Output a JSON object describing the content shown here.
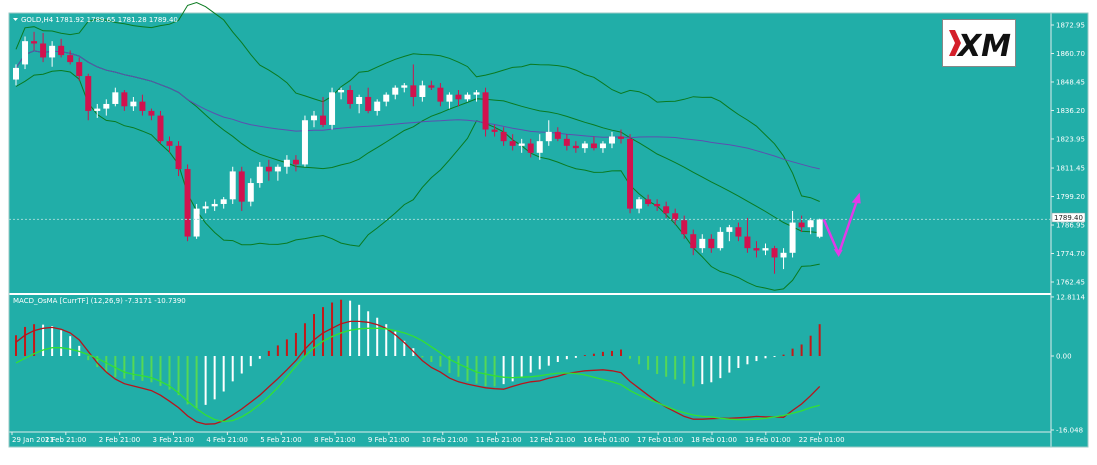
{
  "main_panel": {
    "header": "GOLD,H4  1781.92 1789.65 1781.28 1789.40",
    "price_ticks": [
      "1872.95",
      "1860.70",
      "1848.45",
      "1836.20",
      "1823.95",
      "1811.45",
      "1799.20",
      "1786.95",
      "1774.70",
      "1762.45"
    ],
    "current_price": "1789.40"
  },
  "macd_panel": {
    "header": "MACD_OsMA [CurrTF] (12,26,9) -7.3171 -10.7390",
    "ticks": [
      "12.8114",
      "0.00",
      "-16.048"
    ]
  },
  "x_axis": {
    "labels": [
      "29 Jan 2021",
      "1 Feb 21:00",
      "2 Feb 21:00",
      "3 Feb 21:00",
      "4 Feb 21:00",
      "5 Feb 21:00",
      "8 Feb 21:00",
      "9 Feb 21:00",
      "10 Feb 21:00",
      "11 Feb 21:00",
      "12 Feb 21:00",
      "16 Feb 01:00",
      "17 Feb 01:00",
      "18 Feb 01:00",
      "19 Feb 01:00",
      "22 Feb 01:00"
    ]
  },
  "logo": {
    "text": "XM"
  },
  "colors": {
    "background": "#21aea8",
    "bull_candle": "#ffffff",
    "bear_candle": "#d1124e",
    "bollinger": "#0a7a20",
    "ma_line": "#5c4fb0",
    "macd_signal": "#b8141c",
    "macd_main": "#33e033",
    "arrow": "#e23ae8",
    "hist_pos_rising": "#c41818",
    "hist_pos_falling": "#ffffff",
    "hist_neg_rising": "#ffffff",
    "hist_neg_falling": "#55d855"
  },
  "chart_data": {
    "type": "candlestick",
    "symbol": "GOLD",
    "timeframe": "H4",
    "ylim": [
      1762.45,
      1872.95
    ],
    "candles": [
      [
        1849.5,
        1856.0,
        1847.0,
        1854.5
      ],
      [
        1856.0,
        1868.0,
        1854.0,
        1866.0
      ],
      [
        1866.0,
        1870.0,
        1862.0,
        1865.0
      ],
      [
        1865.0,
        1869.5,
        1857.0,
        1859.0
      ],
      [
        1859.0,
        1866.0,
        1855.0,
        1864.0
      ],
      [
        1864.0,
        1867.0,
        1859.0,
        1860.0
      ],
      [
        1860.0,
        1862.0,
        1856.0,
        1857.0
      ],
      [
        1857.0,
        1859.0,
        1849.0,
        1851.0
      ],
      [
        1851.0,
        1852.0,
        1832.0,
        1836.0
      ],
      [
        1836.0,
        1839.0,
        1833.0,
        1837.0
      ],
      [
        1837.0,
        1841.0,
        1834.0,
        1839.0
      ],
      [
        1839.0,
        1846.0,
        1838.0,
        1844.0
      ],
      [
        1844.0,
        1845.0,
        1836.0,
        1838.0
      ],
      [
        1838.0,
        1842.0,
        1836.0,
        1840.0
      ],
      [
        1840.0,
        1843.0,
        1834.0,
        1836.0
      ],
      [
        1836.0,
        1837.0,
        1832.0,
        1834.0
      ],
      [
        1834.0,
        1836.0,
        1822.0,
        1823.0
      ],
      [
        1823.0,
        1825.0,
        1818.0,
        1821.0
      ],
      [
        1821.0,
        1823.0,
        1808.0,
        1811.0
      ],
      [
        1811.0,
        1813.0,
        1780.0,
        1782.0
      ],
      [
        1782.0,
        1796.0,
        1781.0,
        1794.0
      ],
      [
        1794.0,
        1797.0,
        1792.0,
        1795.0
      ],
      [
        1795.0,
        1798.0,
        1793.0,
        1796.0
      ],
      [
        1796.0,
        1799.0,
        1794.0,
        1798.0
      ],
      [
        1798.0,
        1812.0,
        1796.0,
        1810.0
      ],
      [
        1810.0,
        1812.0,
        1793.0,
        1797.0
      ],
      [
        1797.0,
        1807.0,
        1795.0,
        1805.0
      ],
      [
        1805.0,
        1814.0,
        1803.0,
        1812.0
      ],
      [
        1812.0,
        1815.0,
        1806.0,
        1810.0
      ],
      [
        1810.0,
        1813.0,
        1806.0,
        1812.0
      ],
      [
        1812.0,
        1817.0,
        1809.0,
        1815.0
      ],
      [
        1815.0,
        1817.0,
        1810.0,
        1813.0
      ],
      [
        1813.0,
        1834.0,
        1812.0,
        1832.0
      ],
      [
        1832.0,
        1836.0,
        1829.0,
        1834.0
      ],
      [
        1834.0,
        1842.0,
        1829.0,
        1830.0
      ],
      [
        1830.0,
        1846.0,
        1828.0,
        1844.0
      ],
      [
        1844.0,
        1846.0,
        1841.0,
        1845.0
      ],
      [
        1845.0,
        1847.0,
        1837.0,
        1839.0
      ],
      [
        1839.0,
        1843.0,
        1835.0,
        1842.0
      ],
      [
        1842.0,
        1846.0,
        1835.0,
        1836.0
      ],
      [
        1836.0,
        1841.0,
        1834.0,
        1840.0
      ],
      [
        1840.0,
        1844.0,
        1838.0,
        1843.0
      ],
      [
        1843.0,
        1847.0,
        1841.0,
        1846.0
      ],
      [
        1846.0,
        1848.0,
        1844.0,
        1847.0
      ],
      [
        1847.0,
        1856.0,
        1838.0,
        1842.0
      ],
      [
        1842.0,
        1849.0,
        1840.0,
        1847.0
      ],
      [
        1847.0,
        1849.0,
        1845.0,
        1846.0
      ],
      [
        1846.0,
        1848.0,
        1838.0,
        1840.0
      ],
      [
        1840.0,
        1844.0,
        1837.0,
        1843.0
      ],
      [
        1843.0,
        1845.0,
        1838.0,
        1841.0
      ],
      [
        1841.0,
        1844.0,
        1840.0,
        1843.0
      ],
      [
        1843.0,
        1845.0,
        1840.0,
        1844.0
      ],
      [
        1844.0,
        1846.0,
        1825.0,
        1828.0
      ],
      [
        1828.0,
        1830.0,
        1825.0,
        1827.0
      ],
      [
        1827.0,
        1829.0,
        1821.0,
        1823.0
      ],
      [
        1823.0,
        1826.0,
        1819.0,
        1821.0
      ],
      [
        1821.0,
        1824.0,
        1818.0,
        1822.0
      ],
      [
        1822.0,
        1824.0,
        1816.0,
        1818.0
      ],
      [
        1818.0,
        1826.0,
        1815.0,
        1823.0
      ],
      [
        1823.0,
        1832.0,
        1821.0,
        1827.0
      ],
      [
        1827.0,
        1829.0,
        1823.0,
        1824.0
      ],
      [
        1824.0,
        1826.0,
        1819.0,
        1821.0
      ],
      [
        1821.0,
        1823.0,
        1818.0,
        1820.0
      ],
      [
        1820.0,
        1823.0,
        1818.0,
        1822.0
      ],
      [
        1822.0,
        1825.0,
        1819.0,
        1820.0
      ],
      [
        1820.0,
        1823.0,
        1818.0,
        1822.0
      ],
      [
        1822.0,
        1827.0,
        1820.0,
        1825.0
      ],
      [
        1825.0,
        1828.0,
        1822.0,
        1824.0
      ],
      [
        1824.0,
        1826.0,
        1792.0,
        1794.0
      ],
      [
        1794.0,
        1799.0,
        1792.0,
        1798.0
      ],
      [
        1798.0,
        1800.0,
        1795.0,
        1796.0
      ],
      [
        1796.0,
        1798.0,
        1793.0,
        1795.0
      ],
      [
        1795.0,
        1797.0,
        1790.0,
        1792.0
      ],
      [
        1792.0,
        1794.0,
        1787.0,
        1789.0
      ],
      [
        1789.0,
        1791.0,
        1781.0,
        1783.0
      ],
      [
        1783.0,
        1785.0,
        1774.0,
        1777.0
      ],
      [
        1777.0,
        1783.0,
        1775.0,
        1781.0
      ],
      [
        1781.0,
        1783.0,
        1775.0,
        1777.0
      ],
      [
        1777.0,
        1786.0,
        1776.0,
        1784.0
      ],
      [
        1784.0,
        1787.0,
        1780.0,
        1786.0
      ],
      [
        1786.0,
        1788.0,
        1780.0,
        1782.0
      ],
      [
        1782.0,
        1790.0,
        1775.0,
        1777.0
      ],
      [
        1777.0,
        1780.0,
        1773.0,
        1776.0
      ],
      [
        1776.0,
        1779.0,
        1774.0,
        1777.0
      ],
      [
        1777.0,
        1778.0,
        1766.0,
        1773.0
      ],
      [
        1773.0,
        1777.0,
        1768.0,
        1775.0
      ],
      [
        1775.0,
        1793.0,
        1773.0,
        1788.0
      ],
      [
        1788.0,
        1791.0,
        1784.0,
        1786.0
      ],
      [
        1786.0,
        1790.0,
        1783.0,
        1789.0
      ],
      [
        1781.92,
        1789.65,
        1781.28,
        1789.4
      ]
    ],
    "macd": {
      "histogram": [
        4.5,
        6.3,
        6.9,
        6.8,
        6.5,
        5.6,
        4.3,
        2.2,
        -0.9,
        -2.4,
        -3.7,
        -4.6,
        -4.9,
        -5.2,
        -5.4,
        -5.7,
        -6.5,
        -7.3,
        -8.5,
        -10.5,
        -11.3,
        -10.6,
        -9.4,
        -7.7,
        -5.5,
        -3.8,
        -2.2,
        -0.6,
        1.1,
        2.3,
        3.6,
        5.0,
        7.1,
        9.1,
        10.6,
        11.6,
        12.2,
        12.0,
        11.1,
        9.7,
        8.3,
        6.9,
        5.3,
        3.3,
        1.7,
        -0.3,
        -1.3,
        -2.3,
        -3.7,
        -4.5,
        -5.5,
        -6.0,
        -6.5,
        -6.6,
        -6.1,
        -5.5,
        -4.6,
        -3.6,
        -2.9,
        -2.1,
        -1.3,
        -0.7,
        -0.4,
        0.2,
        0.5,
        0.9,
        1.1,
        1.4,
        -0.6,
        -1.8,
        -3.0,
        -3.9,
        -4.5,
        -5.1,
        -6.0,
        -6.6,
        -6.1,
        -5.7,
        -4.8,
        -3.6,
        -2.6,
        -1.8,
        -1.1,
        -0.5,
        -0.2,
        0.3,
        1.6,
        2.5,
        4.4,
        6.9
      ],
      "signal": [
        3.0,
        4.5,
        5.5,
        6.0,
        6.2,
        5.8,
        5.0,
        3.5,
        1.0,
        -1.5,
        -3.5,
        -5.0,
        -6.0,
        -6.5,
        -7.0,
        -7.5,
        -8.5,
        -9.8,
        -11.2,
        -13.0,
        -14.3,
        -14.8,
        -14.7,
        -14.0,
        -12.8,
        -11.5,
        -10.0,
        -8.5,
        -6.7,
        -4.9,
        -3.0,
        -1.0,
        1.5,
        3.5,
        5.0,
        6.0,
        7.0,
        7.5,
        7.5,
        7.3,
        6.8,
        6.0,
        4.6,
        2.9,
        1.0,
        -1.0,
        -2.5,
        -3.5,
        -4.8,
        -5.6,
        -6.1,
        -6.5,
        -6.9,
        -7.1,
        -7.2,
        -6.6,
        -6.0,
        -5.6,
        -5.4,
        -4.8,
        -4.4,
        -3.8,
        -3.5,
        -3.2,
        -3.1,
        -3.0,
        -3.2,
        -3.6,
        -5.5,
        -7.0,
        -8.5,
        -9.9,
        -11.1,
        -12.1,
        -13.1,
        -13.7,
        -13.7,
        -13.6,
        -13.5,
        -13.5,
        -13.4,
        -13.3,
        -13.1,
        -13.2,
        -13.2,
        -13.3,
        -11.8,
        -10.4,
        -8.6,
        -6.6
      ],
      "main": [
        -1.5,
        -0.5,
        0.5,
        1.3,
        1.8,
        1.8,
        1.5,
        1.0,
        0.3,
        -0.5,
        -1.5,
        -2.5,
        -3.5,
        -4.0,
        -4.3,
        -4.7,
        -5.5,
        -6.5,
        -8.0,
        -9.8,
        -11.4,
        -12.8,
        -13.8,
        -14.2,
        -14.0,
        -13.2,
        -12.0,
        -10.5,
        -8.8,
        -6.8,
        -4.5,
        -2.2,
        0.0,
        1.8,
        3.2,
        4.2,
        5.0,
        5.6,
        5.9,
        6.0,
        6.0,
        5.9,
        5.5,
        5.0,
        4.3,
        3.3,
        2.0,
        0.7,
        -0.7,
        -1.7,
        -2.6,
        -3.5,
        -3.9,
        -4.3,
        -4.6,
        -4.7,
        -4.6,
        -4.5,
        -4.3,
        -4.0,
        -3.7,
        -3.7,
        -3.8,
        -4.1,
        -4.6,
        -5.1,
        -5.6,
        -6.2,
        -7.5,
        -8.5,
        -9.3,
        -10.1,
        -10.9,
        -11.7,
        -12.3,
        -12.8,
        -13.1,
        -13.2,
        -13.5,
        -13.7,
        -13.8,
        -13.8,
        -13.7,
        -13.5,
        -13.2,
        -12.9,
        -12.4,
        -11.9,
        -11.2,
        -10.7
      ]
    }
  }
}
